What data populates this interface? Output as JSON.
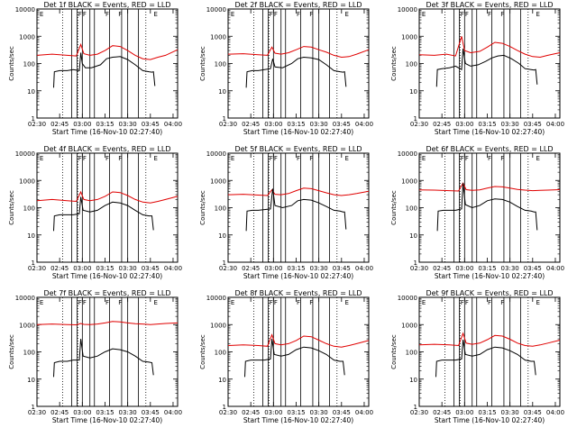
{
  "chart_data": {
    "type": "line",
    "note": "3x3 grid of detector light curves",
    "y_scale": "log",
    "ylim": [
      1,
      10000
    ],
    "y_ticks": [
      "1",
      "10",
      "100",
      "1000",
      "10000"
    ],
    "ylabel": "Counts/sec",
    "xlabel": "Start Time (16-Nov-10 02:27:40)",
    "x_ticks": [
      "02:30",
      "02:45",
      "03:00",
      "03:15",
      "03:30",
      "03:45",
      "04:00"
    ],
    "x_tick_minutes": [
      150,
      165,
      180,
      195,
      210,
      225,
      240
    ],
    "xlim_minutes": [
      150,
      243
    ],
    "dotted_lines_minutes": [
      167,
      177,
      222
    ],
    "solid_lines_minutes": [
      173,
      176.5,
      180,
      185,
      188,
      198,
      206,
      210,
      217
    ],
    "flags": [
      {
        "label": "F",
        "at_minutes": 178.5
      },
      {
        "label": "F",
        "at_minutes": 181.5
      },
      {
        "label": "F",
        "at_minutes": 196.5
      },
      {
        "label": "F",
        "at_minutes": 205
      }
    ],
    "corner_marks": [
      {
        "label": "E",
        "at_minutes": 150.5
      },
      {
        "label": "E",
        "at_minutes": 226
      }
    ],
    "series_legend": {
      "black": "Events",
      "red": "LLD",
      "black_color": "#000000",
      "red_color": "#e00000"
    },
    "panels": [
      {
        "title": "Det 1f BLACK = Events, RED = LLD",
        "events": {
          "x": [
            161,
            161.5,
            165,
            170,
            174,
            178,
            179,
            180,
            182,
            186,
            192,
            196,
            200,
            205,
            210,
            215,
            220,
            224,
            226,
            227,
            228
          ],
          "y": [
            13,
            50,
            55,
            55,
            60,
            55,
            250,
            100,
            70,
            70,
            90,
            150,
            170,
            180,
            140,
            90,
            55,
            50,
            48,
            50,
            15
          ]
        },
        "lld": {
          "x": [
            150,
            160,
            170,
            176,
            179,
            181,
            185,
            190,
            195,
            200,
            205,
            210,
            215,
            220,
            225,
            230,
            235,
            243
          ],
          "y": [
            200,
            220,
            200,
            190,
            500,
            230,
            200,
            220,
            300,
            450,
            420,
            300,
            200,
            150,
            140,
            170,
            200,
            320
          ]
        }
      },
      {
        "title": "Det 2f BLACK = Events, RED = LLD",
        "events": {
          "x": [
            162,
            162.5,
            166,
            170,
            174,
            178,
            179.5,
            181,
            186,
            192,
            196,
            200,
            205,
            210,
            215,
            220,
            224,
            226,
            227,
            228
          ],
          "y": [
            13,
            50,
            55,
            55,
            60,
            65,
            150,
            75,
            70,
            100,
            150,
            170,
            160,
            140,
            90,
            55,
            50,
            48,
            50,
            14
          ]
        },
        "lld": {
          "x": [
            150,
            160,
            170,
            176,
            179,
            181,
            185,
            190,
            195,
            200,
            205,
            210,
            215,
            220,
            225,
            230,
            235,
            243
          ],
          "y": [
            220,
            230,
            210,
            200,
            400,
            240,
            220,
            250,
            320,
            420,
            400,
            320,
            260,
            200,
            170,
            180,
            220,
            320
          ]
        }
      },
      {
        "title": "Det 3f BLACK = Events, RED = LLD",
        "events": {
          "x": [
            161.5,
            162,
            165,
            170,
            174,
            178,
            179,
            180.5,
            184,
            189,
            194,
            198,
            202,
            206,
            211,
            216,
            220,
            224,
            226,
            227,
            228
          ],
          "y": [
            14,
            60,
            65,
            70,
            80,
            60,
            350,
            100,
            80,
            90,
            120,
            160,
            190,
            200,
            150,
            100,
            65,
            60,
            58,
            60,
            17
          ]
        },
        "lld": {
          "x": [
            150,
            160,
            168,
            174,
            178,
            180,
            184,
            190,
            195,
            200,
            205,
            210,
            215,
            220,
            225,
            230,
            235,
            243
          ],
          "y": [
            210,
            200,
            220,
            190,
            1000,
            300,
            250,
            280,
            400,
            600,
            550,
            420,
            300,
            220,
            180,
            170,
            200,
            250
          ]
        }
      },
      {
        "title": "Det 4f BLACK = Events, RED = LLD",
        "events": {
          "x": [
            161,
            161.5,
            165,
            170,
            174,
            178,
            179,
            180.5,
            185,
            190,
            195,
            200,
            205,
            210,
            215,
            220,
            224,
            226,
            227
          ],
          "y": [
            14,
            50,
            55,
            55,
            55,
            60,
            250,
            80,
            70,
            80,
            120,
            160,
            150,
            120,
            80,
            55,
            50,
            50,
            15
          ]
        },
        "lld": {
          "x": [
            150,
            160,
            170,
            176,
            179,
            181,
            185,
            190,
            195,
            200,
            205,
            210,
            215,
            220,
            225,
            230,
            235,
            243
          ],
          "y": [
            180,
            200,
            180,
            170,
            380,
            200,
            180,
            200,
            260,
            380,
            360,
            280,
            200,
            160,
            150,
            170,
            200,
            260
          ]
        }
      },
      {
        "title": "Det 5f BLACK = Events, RED = LLD",
        "events": {
          "x": [
            162,
            162.5,
            166,
            170,
            174,
            178,
            179.5,
            181,
            186,
            192,
            196,
            200,
            205,
            210,
            215,
            220,
            224,
            226,
            227,
            228
          ],
          "y": [
            14,
            75,
            80,
            80,
            85,
            90,
            500,
            120,
            100,
            120,
            180,
            200,
            190,
            150,
            110,
            80,
            75,
            70,
            70,
            16
          ]
        },
        "lld": {
          "x": [
            150,
            160,
            170,
            176,
            179,
            181,
            185,
            190,
            195,
            200,
            205,
            210,
            215,
            220,
            225,
            230,
            235,
            243
          ],
          "y": [
            300,
            310,
            290,
            280,
            450,
            310,
            300,
            330,
            420,
            520,
            500,
            420,
            350,
            300,
            280,
            300,
            330,
            400
          ]
        }
      },
      {
        "title": "Det 6f BLACK = Events, RED = LLD",
        "events": {
          "x": [
            162,
            162.5,
            166,
            170,
            174,
            178,
            179,
            180.5,
            185,
            190,
            195,
            200,
            205,
            210,
            215,
            220,
            224,
            226,
            227,
            228
          ],
          "y": [
            14,
            75,
            80,
            80,
            80,
            90,
            800,
            130,
            100,
            120,
            180,
            210,
            200,
            160,
            110,
            80,
            75,
            70,
            70,
            15
          ]
        },
        "lld": {
          "x": [
            150,
            160,
            170,
            176,
            179,
            181,
            185,
            190,
            195,
            200,
            205,
            210,
            215,
            220,
            225,
            230,
            235,
            243
          ],
          "y": [
            450,
            440,
            420,
            410,
            800,
            460,
            430,
            450,
            520,
            600,
            580,
            520,
            470,
            440,
            420,
            430,
            440,
            460
          ]
        }
      },
      {
        "title": "Det 7f BLACK = Events, RED = LLD",
        "events": {
          "x": [
            161,
            161.5,
            165,
            170,
            174,
            178,
            179,
            180.5,
            185,
            190,
            195,
            200,
            205,
            210,
            215,
            220,
            224,
            226,
            227
          ],
          "y": [
            12,
            40,
            45,
            45,
            50,
            50,
            300,
            70,
            60,
            70,
            100,
            130,
            120,
            100,
            70,
            45,
            42,
            40,
            14
          ]
        },
        "lld": {
          "x": [
            150,
            160,
            170,
            176,
            179,
            181,
            185,
            190,
            195,
            200,
            205,
            210,
            215,
            220,
            225,
            230,
            235,
            243
          ],
          "y": [
            1000,
            1050,
            1000,
            980,
            1100,
            1020,
            1000,
            1050,
            1150,
            1300,
            1250,
            1150,
            1080,
            1050,
            1000,
            1050,
            1100,
            1150
          ]
        }
      },
      {
        "title": "Det 8f BLACK = Events, RED = LLD",
        "events": {
          "x": [
            161,
            161.5,
            165,
            170,
            174,
            178,
            179,
            180.5,
            185,
            190,
            195,
            200,
            205,
            210,
            215,
            220,
            224,
            226,
            227
          ],
          "y": [
            12,
            45,
            50,
            50,
            50,
            55,
            300,
            80,
            70,
            80,
            120,
            150,
            140,
            110,
            80,
            50,
            45,
            45,
            14
          ]
        },
        "lld": {
          "x": [
            150,
            160,
            170,
            176,
            179,
            181,
            185,
            190,
            195,
            200,
            205,
            210,
            215,
            220,
            225,
            230,
            235,
            243
          ],
          "y": [
            170,
            180,
            170,
            160,
            420,
            200,
            180,
            200,
            260,
            380,
            360,
            270,
            200,
            160,
            150,
            170,
            200,
            260
          ]
        }
      },
      {
        "title": "Det 9f BLACK = Events, RED = LLD",
        "events": {
          "x": [
            161,
            161.5,
            165,
            170,
            174,
            178,
            179,
            180.5,
            185,
            190,
            195,
            200,
            205,
            210,
            215,
            220,
            224,
            226,
            227
          ],
          "y": [
            12,
            45,
            50,
            50,
            50,
            55,
            280,
            80,
            70,
            80,
            120,
            150,
            140,
            110,
            80,
            50,
            45,
            45,
            14
          ]
        },
        "lld": {
          "x": [
            150,
            160,
            170,
            176,
            179,
            181,
            185,
            190,
            195,
            200,
            205,
            210,
            215,
            220,
            225,
            230,
            235,
            243
          ],
          "y": [
            180,
            190,
            180,
            170,
            480,
            210,
            190,
            210,
            280,
            400,
            380,
            290,
            210,
            170,
            160,
            180,
            210,
            270
          ]
        }
      }
    ]
  }
}
